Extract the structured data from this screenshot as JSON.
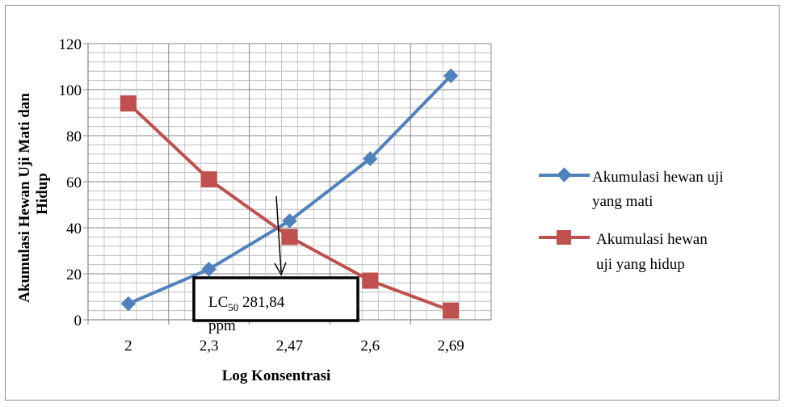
{
  "chart_data": {
    "type": "line",
    "categories": [
      "2",
      "2,3",
      "2,47",
      "2,6",
      "2,69"
    ],
    "series": [
      {
        "name": "Akumulasi hewan uji yang mati",
        "legend_lines": [
          "Akumulasi hewan uji",
          "yang mati"
        ],
        "values": [
          7,
          22,
          43,
          70,
          106
        ],
        "color": "#4f81bd",
        "marker": "diamond"
      },
      {
        "name": "Akumulasi hewan uji yang hidup",
        "legend_lines": [
          "Akumulasi hewan",
          "uji yang hidup"
        ],
        "values": [
          94,
          61,
          36,
          17,
          4
        ],
        "color": "#c0504d",
        "marker": "square"
      }
    ],
    "xlabel": "Log Konsentrasi",
    "ylabel_lines": [
      "Akumulasi  Hewan  Uji Mati dan",
      "Hidup"
    ],
    "ylim": [
      0,
      120
    ],
    "yticks": [
      0,
      20,
      40,
      60,
      80,
      100,
      120
    ],
    "grid": true,
    "legend_position": "right",
    "annotation": {
      "prefix": "LC",
      "subscript": "50",
      "suffix": " 281,84",
      "second_line": "ppm"
    }
  }
}
